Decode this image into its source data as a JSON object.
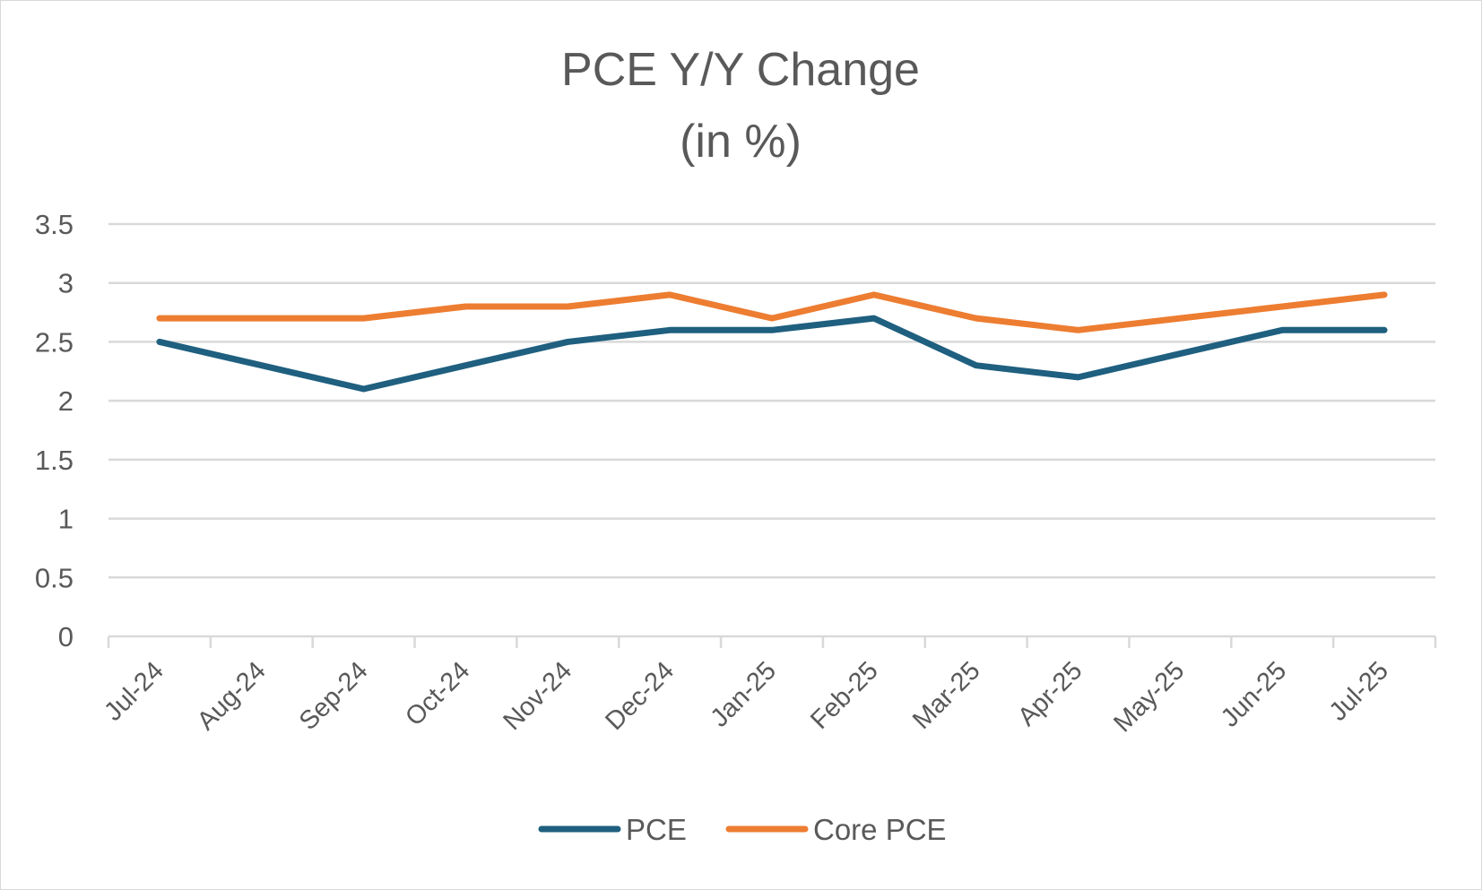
{
  "chart_data": {
    "type": "line",
    "title": "PCE Y/Y Change",
    "subtitle": "(in %)",
    "xlabel": "",
    "ylabel": "",
    "categories": [
      "Jul-24",
      "Aug-24",
      "Sep-24",
      "Oct-24",
      "Nov-24",
      "Dec-24",
      "Jan-25",
      "Feb-25",
      "Mar-25",
      "Apr-25",
      "May-25",
      "Jun-25",
      "Jul-25"
    ],
    "series": [
      {
        "name": "PCE",
        "color": "#1f5f7f",
        "values": [
          2.5,
          2.3,
          2.1,
          2.3,
          2.5,
          2.6,
          2.6,
          2.7,
          2.3,
          2.2,
          2.4,
          2.6,
          2.6
        ]
      },
      {
        "name": "Core PCE",
        "color": "#ed7d31",
        "values": [
          2.7,
          2.7,
          2.7,
          2.8,
          2.8,
          2.9,
          2.7,
          2.9,
          2.7,
          2.6,
          2.7,
          2.8,
          2.9
        ]
      }
    ],
    "ylim": [
      0,
      3.5
    ],
    "yticks": [
      0,
      0.5,
      1,
      1.5,
      2,
      2.5,
      3,
      3.5
    ],
    "ytick_labels": [
      "0",
      "0.5",
      "1",
      "1.5",
      "2",
      "2.5",
      "3",
      "3.5"
    ],
    "grid": true,
    "legend_position": "bottom"
  }
}
